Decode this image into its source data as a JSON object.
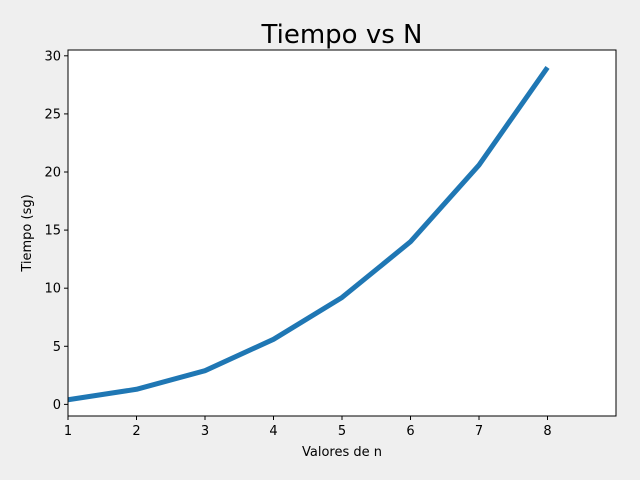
{
  "chart_data": {
    "type": "line",
    "title": "Tiempo vs N",
    "xlabel": "Valores de n",
    "ylabel": "Tiempo (sg)",
    "xlim": [
      1,
      9
    ],
    "ylim": [
      -1,
      30.5
    ],
    "xticks": [
      1,
      2,
      3,
      4,
      5,
      6,
      7,
      8
    ],
    "yticks": [
      0,
      5,
      10,
      15,
      20,
      25,
      30
    ],
    "grid": false,
    "series": [
      {
        "color": "#1f77b4",
        "x": [
          1,
          2,
          3,
          4,
          5,
          6,
          7,
          8
        ],
        "y": [
          0.4,
          1.3,
          2.9,
          5.6,
          9.2,
          14.0,
          20.6,
          29.0
        ]
      }
    ]
  }
}
